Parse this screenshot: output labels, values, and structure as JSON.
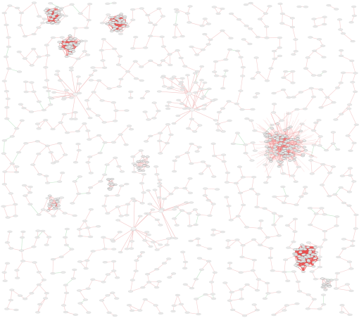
{
  "diagram": {
    "kind": "force-directed network graph",
    "background_color": "#ffffff",
    "edge_colors": {
      "default": "#f2c4c4",
      "dense": "#e85050",
      "accent": "#b9e3c0"
    },
    "node_colors": {
      "default": "#e9e9e9",
      "outline": "#bdbdbd",
      "hub_fill": "#f3f3f3"
    },
    "clusters": [
      {
        "id": "cluster-1",
        "density": "dense"
      },
      {
        "id": "cluster-2",
        "density": "dense"
      },
      {
        "id": "cluster-3",
        "density": "dense"
      },
      {
        "id": "cluster-4",
        "density": "sparse"
      },
      {
        "id": "cluster-5",
        "density": "very-dense"
      },
      {
        "id": "cluster-6",
        "density": "medium"
      },
      {
        "id": "cluster-7",
        "density": "light"
      },
      {
        "id": "cluster-8",
        "density": "light"
      },
      {
        "id": "cluster-9",
        "density": "light"
      }
    ],
    "hubs": [
      {
        "id": "hub-1"
      },
      {
        "id": "hub-2"
      },
      {
        "id": "hub-3"
      },
      {
        "id": "hub-4"
      },
      {
        "id": "hub-5"
      }
    ]
  }
}
